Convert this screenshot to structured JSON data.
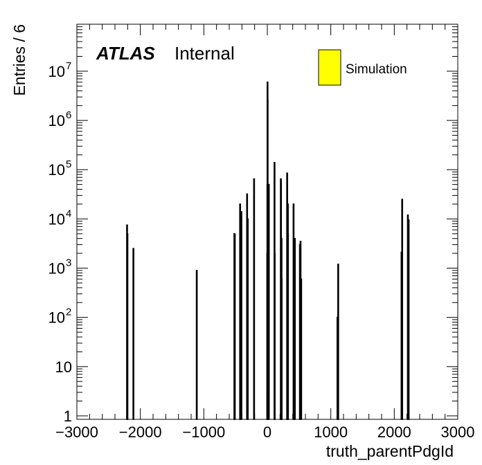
{
  "chart_data": {
    "type": "bar",
    "title": "",
    "xlabel": "truth_parentPdgId",
    "ylabel": "Entries / 6",
    "xlim": [
      -3000,
      3000
    ],
    "ylim": [
      0.85,
      90000000
    ],
    "yscale": "log",
    "grid": false,
    "legend_placement": "top-right",
    "atlas_label": {
      "bold": "ATLAS",
      "text": "Internal"
    },
    "x_ticks": [
      {
        "value": -3000,
        "label": "−3000"
      },
      {
        "value": -2000,
        "label": "−2000"
      },
      {
        "value": -1000,
        "label": "−1000"
      },
      {
        "value": 0,
        "label": "0"
      },
      {
        "value": 1000,
        "label": "1000"
      },
      {
        "value": 2000,
        "label": "2000"
      },
      {
        "value": 3000,
        "label": "3000"
      }
    ],
    "y_ticks": [
      {
        "value": 1,
        "base": "1",
        "exp": ""
      },
      {
        "value": 10,
        "base": "10",
        "exp": ""
      },
      {
        "value": 100,
        "base": "10",
        "exp": "2"
      },
      {
        "value": 1000,
        "base": "10",
        "exp": "3"
      },
      {
        "value": 10000,
        "base": "10",
        "exp": "4"
      },
      {
        "value": 100000,
        "base": "10",
        "exp": "5"
      },
      {
        "value": 1000000,
        "base": "10",
        "exp": "6"
      },
      {
        "value": 10000000,
        "base": "10",
        "exp": "7"
      }
    ],
    "series": [
      {
        "name": "Simulation",
        "color": "#ffff00",
        "edge_color": "#000000",
        "bin_width": 6,
        "x": [
          -2212,
          -2206,
          -2112,
          -1114,
          -521,
          -515,
          -431,
          -425,
          -411,
          -321,
          -311,
          -211,
          -3,
          -1,
          0,
          1,
          2,
          3,
          4,
          5,
          21,
          111,
          113,
          211,
          213,
          221,
          223,
          310,
          313,
          321,
          323,
          411,
          421,
          431,
          511,
          521,
          531,
          1103,
          1114,
          2112,
          2122,
          2212,
          2224
        ],
        "values": [
          7500,
          5000,
          2500,
          900,
          5000,
          4800,
          20000,
          2500,
          14000,
          32000,
          10000,
          65000,
          2000,
          50000,
          3,
          6000000,
          2600000,
          1000,
          200,
          10,
          50000,
          140000,
          2000,
          65000,
          55000,
          4000,
          600,
          85000,
          20000,
          20000,
          5000,
          20000,
          2000,
          4000,
          3000,
          3500,
          600,
          100,
          1200,
          2100,
          25000,
          12000,
          9500
        ]
      }
    ]
  }
}
